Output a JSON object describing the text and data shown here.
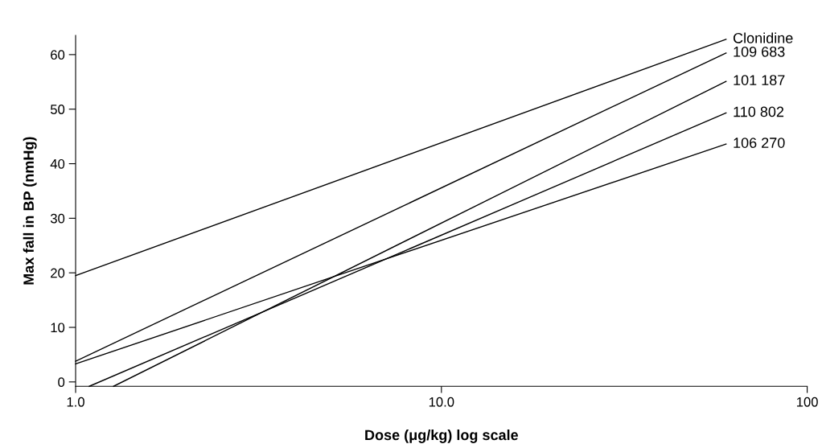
{
  "chart_data": {
    "type": "line",
    "xlabel": "Dose (μg/kg) log scale",
    "ylabel": "Max fall in BP (nmHg)",
    "log": "x",
    "xlim": [
      1,
      100
    ],
    "xticks": [
      {
        "value": 1,
        "label": "1.0"
      },
      {
        "value": 10,
        "label": "10.0"
      },
      {
        "value": 100,
        "label": "100"
      }
    ],
    "ylim": [
      -0.8,
      63.5
    ],
    "yticks": [
      0,
      10,
      20,
      30,
      40,
      50,
      60
    ],
    "grid": false,
    "legend": false,
    "marker": "none",
    "line_style": "solid",
    "series": [
      {
        "name": "Clonidine",
        "color": "#000000",
        "x": [
          1,
          60
        ],
        "values": [
          19.5,
          62.8
        ]
      },
      {
        "name": "109 683",
        "color": "#000000",
        "x": [
          1,
          60
        ],
        "values": [
          3.8,
          60.3
        ]
      },
      {
        "name": "101 187",
        "color": "#000000",
        "x": [
          1.27,
          60
        ],
        "values": [
          -0.8,
          55.1
        ]
      },
      {
        "name": "110 802",
        "color": "#000000",
        "x": [
          1.09,
          60
        ],
        "values": [
          -0.8,
          49.3
        ]
      },
      {
        "name": "106 270",
        "color": "#000000",
        "x": [
          1,
          60
        ],
        "values": [
          3.3,
          43.6
        ]
      }
    ]
  }
}
